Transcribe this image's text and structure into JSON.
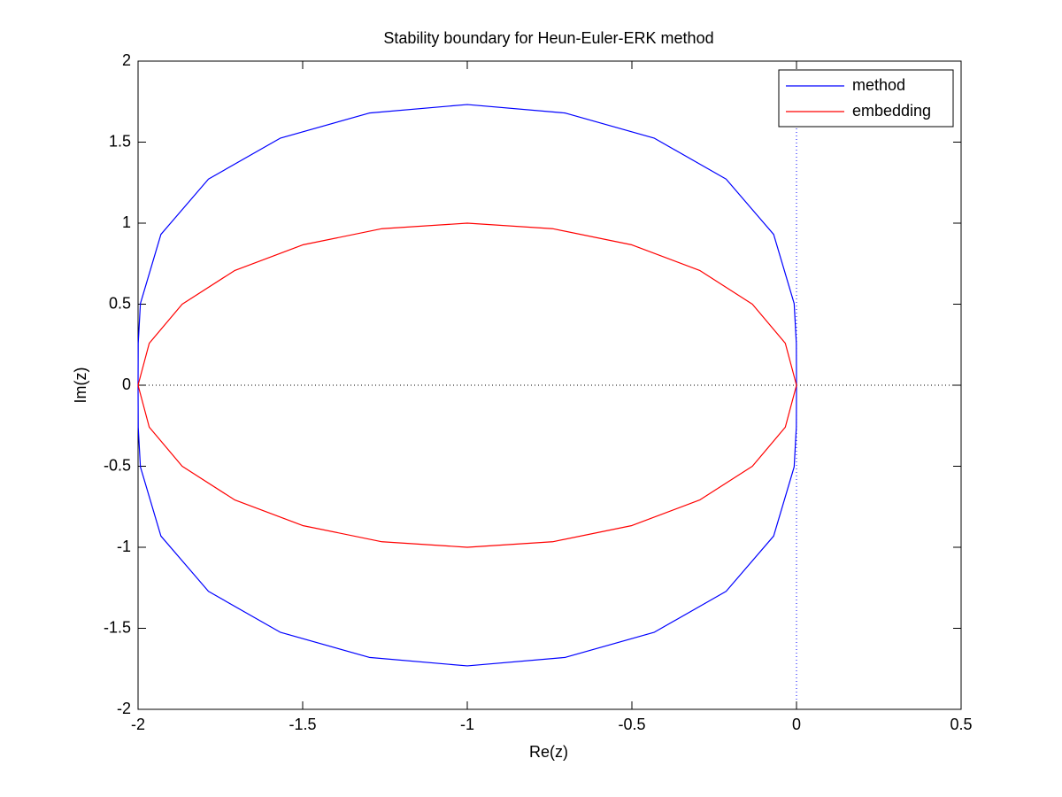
{
  "chart_data": {
    "type": "line",
    "title": "Stability boundary for Heun-Euler-ERK method",
    "x_label": "Re(z)",
    "y_label": "Im(z)",
    "xlim": [
      -2,
      0.5
    ],
    "ylim": [
      -2,
      2
    ],
    "xticks": [
      -2,
      -1.5,
      -1,
      -0.5,
      0,
      0.5
    ],
    "yticks": [
      -2,
      -1.5,
      -1,
      -0.5,
      0,
      0.5,
      1,
      1.5,
      2
    ],
    "grid": false,
    "legend": "upper right",
    "series": [
      {
        "name": "method",
        "color": "#0000ff",
        "x": [
          -2,
          -1.9995,
          -1.9929,
          -1.9306,
          -1.7862,
          -1.5684,
          -1.2977,
          -1,
          -0.7023,
          -0.4316,
          -0.2138,
          -0.0694,
          -0.0071,
          -0.0005,
          0,
          -0.0005,
          -0.0071,
          -0.0694,
          -0.2138,
          -0.4316,
          -0.7023,
          -1,
          -1.2977,
          -1.5684,
          -1.7862,
          -1.9306,
          -1.9929,
          -1.9995,
          -2
        ],
        "values": [
          0,
          0.2589,
          0.5036,
          0.9306,
          1.272,
          1.524,
          1.6795,
          1.732,
          1.6795,
          1.524,
          1.272,
          0.9306,
          0.5036,
          0.2589,
          0,
          -0.2589,
          -0.5036,
          -0.9306,
          -1.272,
          -1.524,
          -1.6795,
          -1.732,
          -1.6795,
          -1.524,
          -1.272,
          -0.9306,
          -0.5036,
          -0.2589,
          0
        ]
      },
      {
        "name": "embedding",
        "color": "#ff0000",
        "x": [
          -2,
          -1.966,
          -1.866,
          -1.707,
          -1.5,
          -1.259,
          -1,
          -0.741,
          -0.5,
          -0.293,
          -0.134,
          -0.034,
          0,
          -0.034,
          -0.134,
          -0.293,
          -0.5,
          -0.741,
          -1,
          -1.259,
          -1.5,
          -1.707,
          -1.866,
          -1.966,
          -2
        ],
        "values": [
          0,
          0.259,
          0.5,
          0.707,
          0.866,
          0.966,
          1,
          0.966,
          0.866,
          0.707,
          0.5,
          0.259,
          0,
          -0.259,
          -0.5,
          -0.707,
          -0.866,
          -0.966,
          -1,
          -0.966,
          -0.866,
          -0.707,
          -0.5,
          -0.259,
          0
        ]
      }
    ]
  }
}
